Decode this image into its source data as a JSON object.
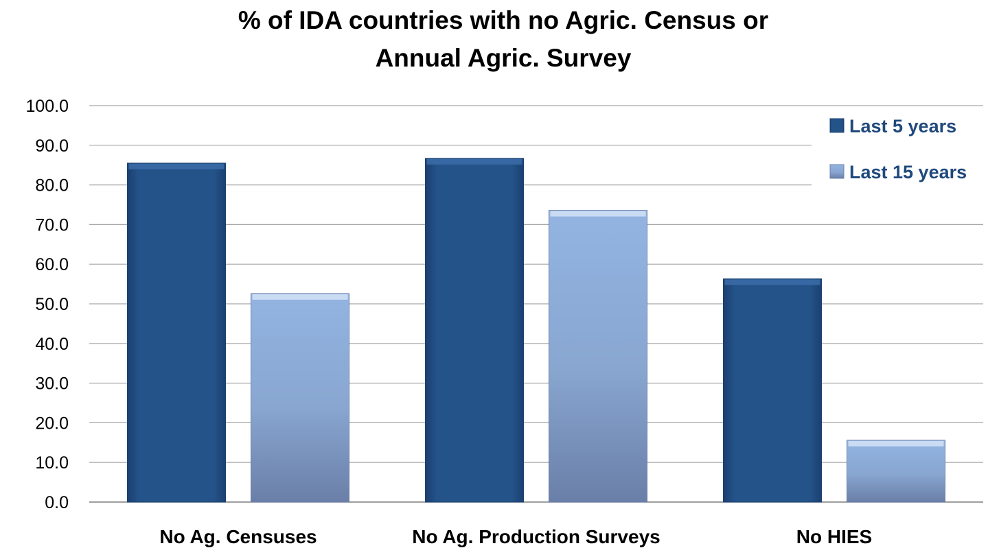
{
  "chart_data": {
    "type": "bar",
    "title": [
      "% of IDA countries with no Agric. Census or",
      "Annual Agric. Survey"
    ],
    "xlabel": "",
    "ylabel": "",
    "categories": [
      "No Ag. Censuses",
      "No Ag. Production Surveys",
      "No HIES"
    ],
    "series": [
      {
        "name": "Last 5 years",
        "values": [
          85.5,
          86.7,
          56.3
        ],
        "color": "#24538a"
      },
      {
        "name": "Last 15 years",
        "values": [
          52.6,
          73.6,
          15.6
        ],
        "color": "#8eaedb"
      }
    ],
    "ylim": [
      0,
      100
    ],
    "yticks": [
      "0.0",
      "10.0",
      "20.0",
      "30.0",
      "40.0",
      "50.0",
      "60.0",
      "70.0",
      "80.0",
      "90.0",
      "100.0"
    ],
    "grid": true,
    "legend_position": "top-right"
  }
}
